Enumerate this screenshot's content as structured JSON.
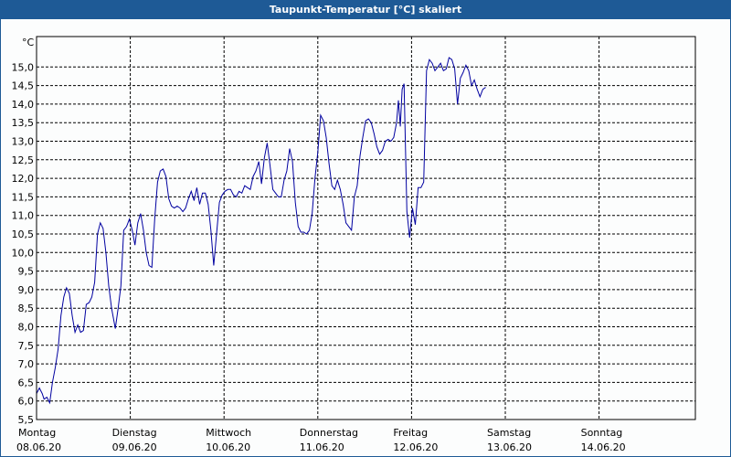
{
  "window": {
    "title": "Taupunkt-Temperatur [°C] skaliert"
  },
  "chart_data": {
    "type": "line",
    "title": "Taupunkt-Temperatur [°C] skaliert",
    "unit": "°C",
    "ylim": [
      5.5,
      15.5
    ],
    "yticks": [
      "15,0",
      "14,5",
      "14,0",
      "13,5",
      "13,0",
      "12,5",
      "12,0",
      "11,5",
      "11,0",
      "10,5",
      "10,0",
      "9,5",
      "9,0",
      "8,5",
      "8,0",
      "7,5",
      "7,0",
      "6,5",
      "6,0",
      "5,5"
    ],
    "xlim": [
      0,
      7
    ],
    "xticks": [
      {
        "day": "Montag",
        "date": "08.06.20"
      },
      {
        "day": "Dienstag",
        "date": "09.06.20"
      },
      {
        "day": "Mittwoch",
        "date": "10.06.20"
      },
      {
        "day": "Donnerstag",
        "date": "11.06.20"
      },
      {
        "day": "Freitag",
        "date": "12.06.20"
      },
      {
        "day": "Samstag",
        "date": "13.06.20"
      },
      {
        "day": "Sonntag",
        "date": "14.06.20"
      }
    ],
    "grid": true,
    "color": "#0000a0",
    "series": [
      {
        "points": [
          [
            0.0,
            6.2
          ],
          [
            0.03,
            6.35
          ],
          [
            0.06,
            6.2
          ],
          [
            0.08,
            6.05
          ],
          [
            0.11,
            6.1
          ],
          [
            0.14,
            5.95
          ],
          [
            0.17,
            6.5
          ],
          [
            0.2,
            6.9
          ],
          [
            0.23,
            7.4
          ],
          [
            0.26,
            8.3
          ],
          [
            0.29,
            8.8
          ],
          [
            0.32,
            9.05
          ],
          [
            0.35,
            8.9
          ],
          [
            0.38,
            8.3
          ],
          [
            0.41,
            7.85
          ],
          [
            0.44,
            8.05
          ],
          [
            0.47,
            7.85
          ],
          [
            0.5,
            7.9
          ],
          [
            0.53,
            8.6
          ],
          [
            0.56,
            8.65
          ],
          [
            0.59,
            8.8
          ],
          [
            0.62,
            9.2
          ],
          [
            0.65,
            10.5
          ],
          [
            0.68,
            10.8
          ],
          [
            0.71,
            10.65
          ],
          [
            0.74,
            10.0
          ],
          [
            0.77,
            9.1
          ],
          [
            0.8,
            8.5
          ],
          [
            0.84,
            7.95
          ],
          [
            0.87,
            8.5
          ],
          [
            0.9,
            9.1
          ],
          [
            0.93,
            10.6
          ],
          [
            0.96,
            10.7
          ],
          [
            0.99,
            10.9
          ],
          [
            1.02,
            10.6
          ],
          [
            1.05,
            10.2
          ],
          [
            1.08,
            10.8
          ],
          [
            1.11,
            11.05
          ],
          [
            1.14,
            10.6
          ],
          [
            1.17,
            10.0
          ],
          [
            1.2,
            9.65
          ],
          [
            1.23,
            9.6
          ],
          [
            1.26,
            10.9
          ],
          [
            1.29,
            11.9
          ],
          [
            1.32,
            12.2
          ],
          [
            1.35,
            12.25
          ],
          [
            1.38,
            12.05
          ],
          [
            1.41,
            11.45
          ],
          [
            1.44,
            11.25
          ],
          [
            1.47,
            11.2
          ],
          [
            1.5,
            11.25
          ],
          [
            1.53,
            11.2
          ],
          [
            1.56,
            11.1
          ],
          [
            1.59,
            11.2
          ],
          [
            1.62,
            11.45
          ],
          [
            1.65,
            11.65
          ],
          [
            1.68,
            11.4
          ],
          [
            1.71,
            11.75
          ],
          [
            1.74,
            11.3
          ],
          [
            1.77,
            11.6
          ],
          [
            1.8,
            11.6
          ],
          [
            1.83,
            11.3
          ],
          [
            1.86,
            10.6
          ],
          [
            1.89,
            9.65
          ],
          [
            1.92,
            10.5
          ],
          [
            1.95,
            11.35
          ],
          [
            1.98,
            11.55
          ],
          [
            2.01,
            11.65
          ],
          [
            2.04,
            11.7
          ],
          [
            2.07,
            11.7
          ],
          [
            2.1,
            11.55
          ],
          [
            2.13,
            11.5
          ],
          [
            2.16,
            11.65
          ],
          [
            2.19,
            11.6
          ],
          [
            2.22,
            11.8
          ],
          [
            2.25,
            11.75
          ],
          [
            2.28,
            11.7
          ],
          [
            2.31,
            12.05
          ],
          [
            2.34,
            12.2
          ],
          [
            2.37,
            12.45
          ],
          [
            2.4,
            11.85
          ],
          [
            2.43,
            12.55
          ],
          [
            2.46,
            12.95
          ],
          [
            2.49,
            12.35
          ],
          [
            2.52,
            11.7
          ],
          [
            2.55,
            11.6
          ],
          [
            2.58,
            11.5
          ],
          [
            2.61,
            11.5
          ],
          [
            2.64,
            11.95
          ],
          [
            2.67,
            12.2
          ],
          [
            2.7,
            12.8
          ],
          [
            2.73,
            12.45
          ],
          [
            2.76,
            11.35
          ],
          [
            2.79,
            10.7
          ],
          [
            2.82,
            10.55
          ],
          [
            2.85,
            10.55
          ],
          [
            2.88,
            10.5
          ],
          [
            2.91,
            10.6
          ],
          [
            2.94,
            11.05
          ],
          [
            2.97,
            12.0
          ],
          [
            3.0,
            12.7
          ],
          [
            3.03,
            13.7
          ],
          [
            3.06,
            13.55
          ],
          [
            3.09,
            13.1
          ],
          [
            3.12,
            12.4
          ],
          [
            3.15,
            11.8
          ],
          [
            3.18,
            11.7
          ],
          [
            3.21,
            11.95
          ],
          [
            3.24,
            11.7
          ],
          [
            3.27,
            11.3
          ],
          [
            3.3,
            10.8
          ],
          [
            3.33,
            10.7
          ],
          [
            3.36,
            10.6
          ],
          [
            3.39,
            11.5
          ],
          [
            3.42,
            11.8
          ],
          [
            3.45,
            12.6
          ],
          [
            3.48,
            13.1
          ],
          [
            3.51,
            13.55
          ],
          [
            3.54,
            13.6
          ],
          [
            3.57,
            13.5
          ],
          [
            3.6,
            13.2
          ],
          [
            3.63,
            12.85
          ],
          [
            3.66,
            12.65
          ],
          [
            3.69,
            12.75
          ],
          [
            3.72,
            13.0
          ],
          [
            3.75,
            13.05
          ],
          [
            3.78,
            13.0
          ],
          [
            3.81,
            13.1
          ],
          [
            3.84,
            13.5
          ],
          [
            3.86,
            14.1
          ],
          [
            3.88,
            13.4
          ],
          [
            3.9,
            14.4
          ],
          [
            3.92,
            14.55
          ],
          [
            3.95,
            11.1
          ],
          [
            3.98,
            10.4
          ],
          [
            4.01,
            11.2
          ],
          [
            4.04,
            10.75
          ],
          [
            4.07,
            11.75
          ],
          [
            4.1,
            11.75
          ],
          [
            4.13,
            11.9
          ],
          [
            4.16,
            14.9
          ],
          [
            4.19,
            15.2
          ],
          [
            4.22,
            15.1
          ],
          [
            4.25,
            14.9
          ],
          [
            4.28,
            15.0
          ],
          [
            4.31,
            15.1
          ],
          [
            4.34,
            14.9
          ],
          [
            4.37,
            14.95
          ],
          [
            4.4,
            15.25
          ],
          [
            4.43,
            15.2
          ],
          [
            4.46,
            14.95
          ],
          [
            4.49,
            14.0
          ],
          [
            4.52,
            14.7
          ],
          [
            4.55,
            14.85
          ],
          [
            4.58,
            15.05
          ],
          [
            4.61,
            14.9
          ],
          [
            4.64,
            14.5
          ],
          [
            4.67,
            14.65
          ],
          [
            4.7,
            14.4
          ],
          [
            4.73,
            14.2
          ],
          [
            4.76,
            14.4
          ],
          [
            4.79,
            14.45
          ]
        ]
      }
    ]
  }
}
